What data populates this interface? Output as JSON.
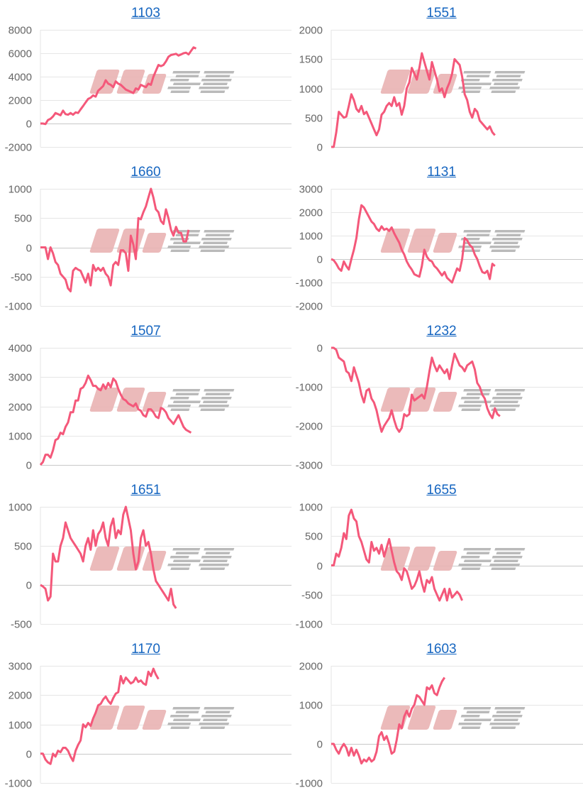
{
  "watermark": "みんレポ",
  "colors": {
    "line": "#f4587a",
    "grid": "#e6e6e6",
    "zero": "#c8c8c8",
    "title": "#1565c0",
    "watermark_pink": "#e9b3b3",
    "watermark_gray": "#b3b3b3"
  },
  "chart_data": [
    {
      "type": "line",
      "title": "1103",
      "ylim": [
        -2000,
        8000
      ],
      "yticks": [
        8000,
        6000,
        4000,
        2000,
        0,
        -2000
      ],
      "xlim": [
        0,
        100
      ],
      "values": [
        0,
        0,
        -50,
        300,
        400,
        600,
        900,
        800,
        700,
        1100,
        800,
        750,
        900,
        750,
        950,
        900,
        1200,
        1500,
        1800,
        2100,
        2200,
        2400,
        2300,
        2800,
        3000,
        3200,
        3700,
        3400,
        3300,
        3100,
        3600,
        3400,
        3300,
        3100,
        2900,
        2800,
        2700,
        2600,
        3000,
        2900,
        3300,
        3200,
        3100,
        3400,
        3300,
        4000,
        4500,
        5000,
        4900,
        5000,
        5300,
        5700,
        5850,
        5900,
        5950,
        5800,
        5900,
        6000,
        6050,
        5900,
        6200,
        6500,
        6400
      ]
    },
    {
      "type": "line",
      "title": "1551",
      "ylim": [
        0,
        2000
      ],
      "yticks": [
        2000,
        1500,
        1000,
        500,
        0
      ],
      "xlim": [
        0,
        100
      ],
      "values": [
        0,
        0,
        250,
        600,
        550,
        500,
        520,
        700,
        900,
        800,
        650,
        600,
        700,
        560,
        600,
        500,
        400,
        300,
        200,
        300,
        550,
        600,
        700,
        750,
        700,
        850,
        700,
        750,
        550,
        700,
        1000,
        1100,
        1350,
        1250,
        1150,
        1350,
        1600,
        1450,
        1300,
        1150,
        1450,
        1300,
        1150,
        950,
        1000,
        850,
        1000,
        1100,
        1250,
        1500,
        1450,
        1400,
        1200,
        900,
        800,
        600,
        500,
        650,
        600,
        450,
        400,
        350,
        300,
        350,
        250,
        200
      ]
    },
    {
      "type": "line",
      "title": "1660",
      "ylim": [
        -1000,
        1000
      ],
      "yticks": [
        1000,
        500,
        0,
        -500,
        -1000
      ],
      "xlim": [
        0,
        100
      ],
      "values": [
        0,
        0,
        0,
        -200,
        0,
        -100,
        -250,
        -300,
        -450,
        -500,
        -550,
        -700,
        -750,
        -400,
        -350,
        -380,
        -400,
        -500,
        -600,
        -450,
        -650,
        -300,
        -400,
        -350,
        -400,
        -350,
        -450,
        -500,
        -650,
        -300,
        -250,
        -300,
        -50,
        -50,
        -100,
        -400,
        200,
        50,
        -200,
        500,
        480,
        600,
        700,
        850,
        1000,
        850,
        650,
        600,
        450,
        400,
        650,
        500,
        300,
        200,
        350,
        250,
        250,
        100,
        100,
        300
      ]
    },
    {
      "type": "line",
      "title": "1131",
      "ylim": [
        -2000,
        3000
      ],
      "yticks": [
        3000,
        2000,
        1000,
        0,
        -1000,
        -2000
      ],
      "xlim": [
        0,
        100
      ],
      "values": [
        0,
        -50,
        -200,
        -400,
        -500,
        -100,
        -300,
        -450,
        0,
        400,
        900,
        1700,
        2300,
        2200,
        2000,
        1800,
        1600,
        1500,
        1300,
        1200,
        1400,
        1250,
        1300,
        1200,
        1350,
        1100,
        900,
        700,
        400,
        200,
        -100,
        -300,
        -450,
        -650,
        -700,
        -750,
        -300,
        400,
        100,
        -50,
        -100,
        -300,
        -400,
        -550,
        -700,
        -550,
        -800,
        -900,
        -1000,
        -700,
        -400,
        -500,
        0,
        900,
        800,
        600,
        500,
        200,
        0,
        -300,
        -550,
        -600,
        -500,
        -850,
        -200,
        -300
      ]
    },
    {
      "type": "line",
      "title": "1507",
      "ylim": [
        0,
        4000
      ],
      "yticks": [
        4000,
        3000,
        2000,
        1000,
        0
      ],
      "xlim": [
        0,
        100
      ],
      "values": [
        0,
        100,
        350,
        350,
        250,
        500,
        850,
        900,
        1100,
        1050,
        1300,
        1450,
        1800,
        1800,
        2200,
        2200,
        2600,
        2650,
        2800,
        3050,
        2900,
        2700,
        2700,
        2600,
        2550,
        2750,
        2600,
        2800,
        2650,
        2950,
        2850,
        2600,
        2400,
        2250,
        2200,
        2100,
        2050,
        2000,
        2100,
        1900,
        1850,
        1700,
        1650,
        1900,
        1900,
        1800,
        1650,
        1600,
        1950,
        1900,
        1800,
        1600,
        1500,
        1400,
        1550,
        1700,
        1500,
        1300,
        1200,
        1150,
        1100
      ]
    },
    {
      "type": "line",
      "title": "1232",
      "ylim": [
        -3000,
        0
      ],
      "yticks": [
        0,
        -1000,
        -2000,
        -3000
      ],
      "xlim": [
        0,
        100
      ],
      "values": [
        0,
        0,
        -50,
        -250,
        -300,
        -350,
        -600,
        -650,
        -850,
        -500,
        -700,
        -900,
        -1200,
        -1400,
        -1100,
        -1050,
        -1300,
        -1400,
        -1600,
        -1900,
        -2150,
        -2000,
        -1900,
        -1800,
        -1600,
        -1850,
        -2050,
        -2150,
        -2050,
        -1700,
        -1750,
        -1700,
        -1200,
        -1350,
        -1300,
        -1250,
        -1200,
        -1300,
        -1000,
        -600,
        -250,
        -450,
        -600,
        -450,
        -550,
        -650,
        -550,
        -800,
        -450,
        -150,
        -300,
        -450,
        -500,
        -600,
        -450,
        -400,
        -350,
        -550,
        -900,
        -1000,
        -1200,
        -1300,
        -1550,
        -1700,
        -1800,
        -1550,
        -1700,
        -1750
      ]
    },
    {
      "type": "line",
      "title": "1651",
      "ylim": [
        -500,
        1000
      ],
      "yticks": [
        1000,
        500,
        0,
        -500
      ],
      "xlim": [
        0,
        100
      ],
      "values": [
        0,
        -20,
        -50,
        -200,
        -150,
        400,
        300,
        300,
        500,
        600,
        800,
        700,
        600,
        550,
        500,
        450,
        400,
        300,
        500,
        600,
        450,
        700,
        500,
        650,
        700,
        800,
        600,
        500,
        750,
        850,
        600,
        700,
        650,
        900,
        1000,
        850,
        700,
        400,
        200,
        300,
        600,
        700,
        500,
        550,
        400,
        200,
        50,
        0,
        -50,
        -100,
        -150,
        -200,
        -50,
        -250,
        -300
      ]
    },
    {
      "type": "line",
      "title": "1655",
      "ylim": [
        -1000,
        1000
      ],
      "yticks": [
        1000,
        500,
        0,
        -500,
        -1000
      ],
      "xlim": [
        0,
        100
      ],
      "values": [
        0,
        0,
        200,
        150,
        300,
        550,
        450,
        850,
        950,
        800,
        750,
        500,
        400,
        250,
        100,
        50,
        400,
        250,
        300,
        200,
        350,
        150,
        300,
        450,
        250,
        50,
        -100,
        -150,
        -250,
        -50,
        -100,
        -250,
        -400,
        -350,
        -250,
        -100,
        -300,
        -450,
        -250,
        -300,
        -200,
        -400,
        -500,
        -600,
        -500,
        -400,
        -600,
        -400,
        -550,
        -500,
        -450,
        -500,
        -600
      ]
    },
    {
      "type": "line",
      "title": "1170",
      "ylim": [
        -1000,
        3000
      ],
      "yticks": [
        3000,
        2000,
        1000,
        0,
        -1000
      ],
      "xlim": [
        0,
        100
      ],
      "values": [
        0,
        0,
        -200,
        -300,
        -350,
        0,
        -100,
        100,
        50,
        200,
        200,
        100,
        -100,
        -250,
        100,
        300,
        450,
        1000,
        900,
        1050,
        950,
        1200,
        1400,
        1650,
        1700,
        1850,
        1950,
        1800,
        1700,
        1900,
        2050,
        2100,
        2650,
        2400,
        2600,
        2500,
        2400,
        2450,
        2600,
        2450,
        2500,
        2400,
        2350,
        2800,
        2650,
        2900,
        2700,
        2550
      ]
    },
    {
      "type": "line",
      "title": "1603",
      "ylim": [
        -1000,
        2000
      ],
      "yticks": [
        2000,
        1000,
        0,
        -1000
      ],
      "xlim": [
        0,
        100
      ],
      "values": [
        0,
        0,
        -150,
        -250,
        -100,
        0,
        -100,
        -300,
        -100,
        -300,
        -150,
        -300,
        -500,
        -400,
        -450,
        -350,
        -450,
        -400,
        -200,
        200,
        300,
        100,
        200,
        0,
        -250,
        -200,
        100,
        500,
        400,
        700,
        850,
        700,
        900,
        1000,
        1250,
        1200,
        1100,
        1000,
        1450,
        1400,
        1500,
        1300,
        1250,
        1450,
        1600,
        1700
      ]
    }
  ]
}
